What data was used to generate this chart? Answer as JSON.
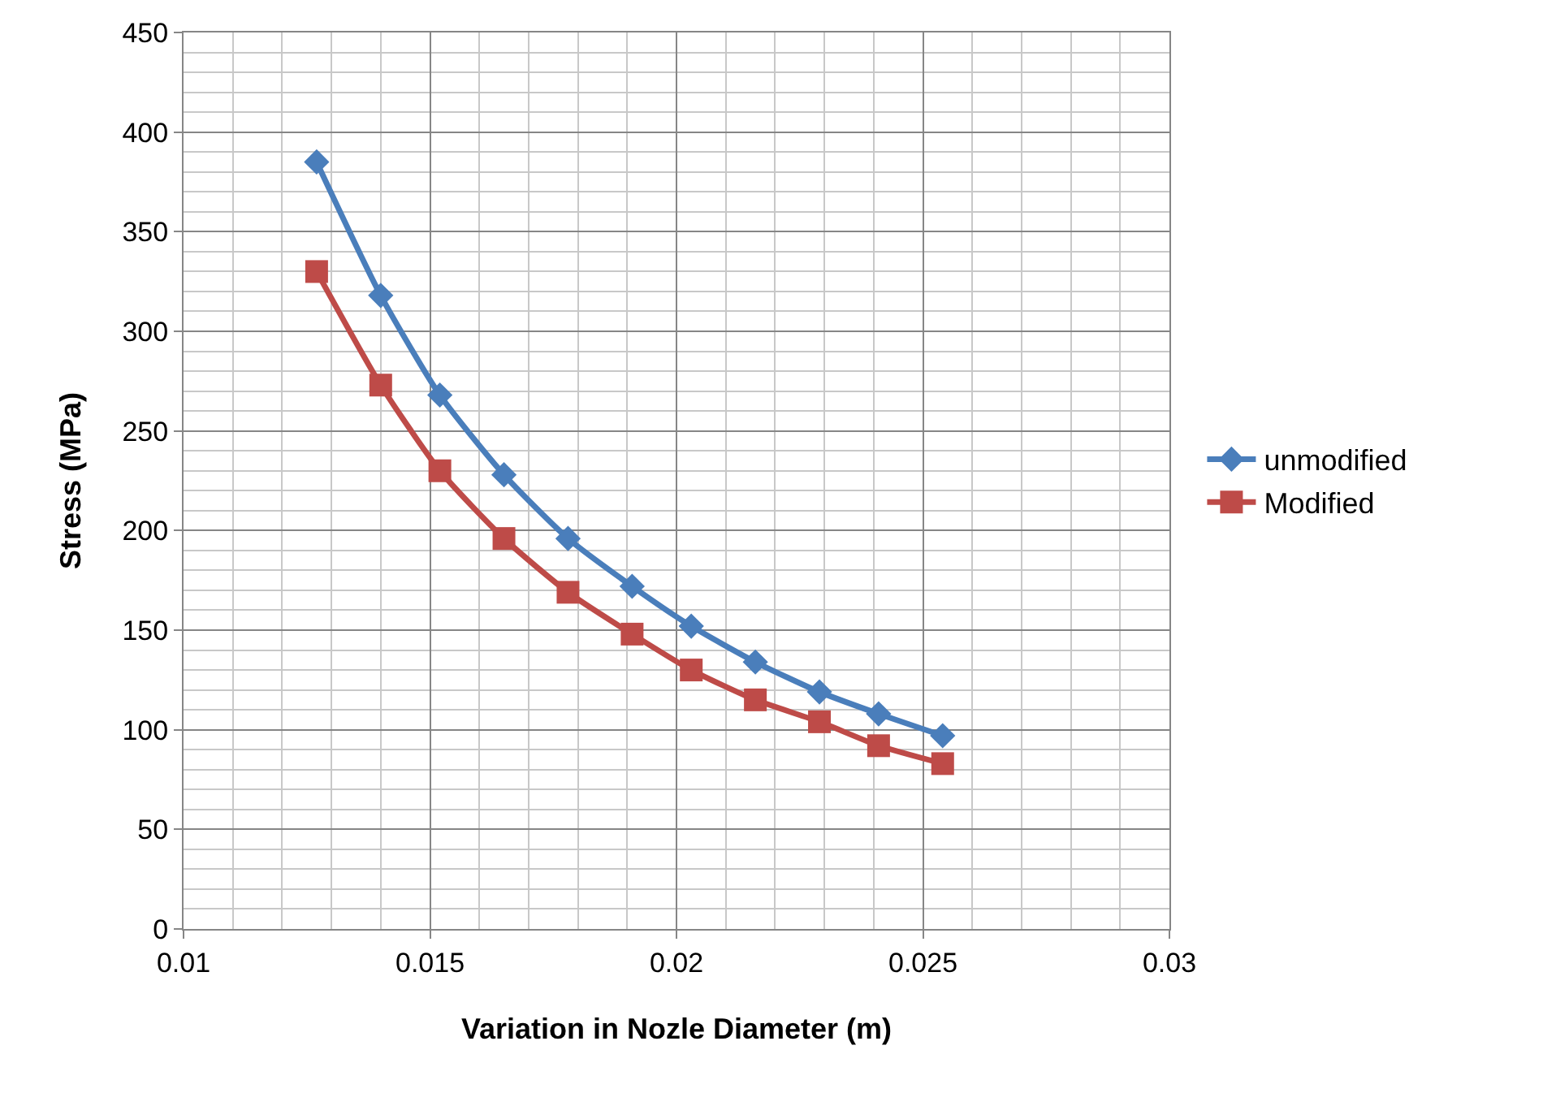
{
  "chart_data": {
    "type": "line",
    "xlabel": "Variation in Nozle Diameter (m)",
    "ylabel": "Stress (MPa)",
    "xlim": [
      0.01,
      0.03
    ],
    "xticks": [
      0.01,
      0.015,
      0.02,
      0.025,
      0.03
    ],
    "ylim": [
      0,
      450
    ],
    "yticks": [
      0,
      50,
      100,
      150,
      200,
      250,
      300,
      350,
      400,
      450
    ],
    "grid": true,
    "legend": "right",
    "x": [
      0.0127,
      0.014,
      0.0152,
      0.0165,
      0.0178,
      0.0191,
      0.0203,
      0.0216,
      0.0229,
      0.0241,
      0.0254
    ],
    "series": [
      {
        "name": "unmodified",
        "color": "#4a7ebb",
        "marker": "diamond",
        "values": [
          385,
          318,
          268,
          228,
          196,
          172,
          152,
          134,
          119,
          108,
          97
        ]
      },
      {
        "name": "Modified",
        "color": "#be4b48",
        "marker": "square",
        "values": [
          330,
          273,
          230,
          196,
          169,
          148,
          130,
          115,
          104,
          92,
          83
        ]
      }
    ]
  }
}
